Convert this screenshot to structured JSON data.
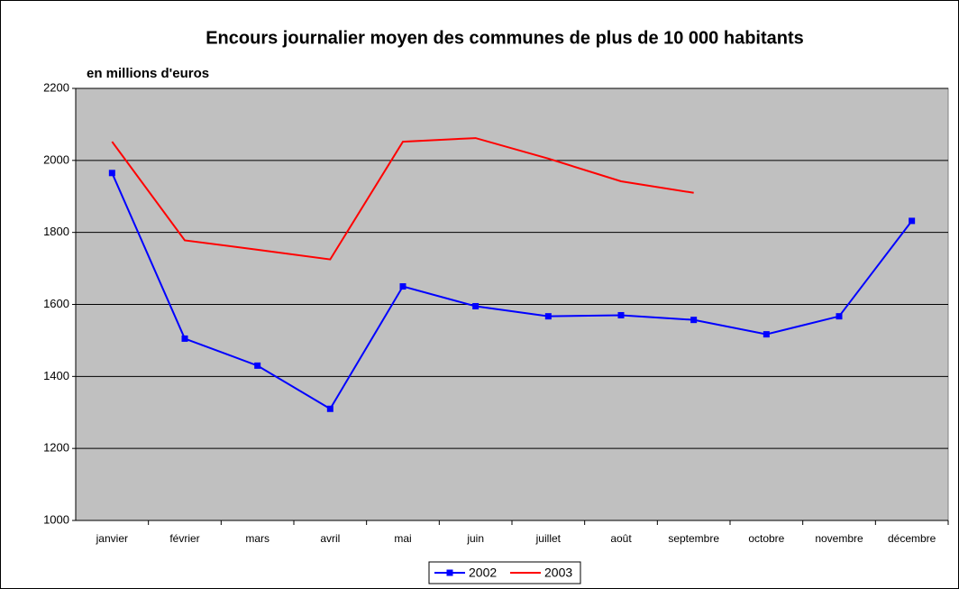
{
  "chart_data": {
    "type": "line",
    "title": "Encours journalier moyen des communes de plus de 10 000 habitants",
    "subtitle": "en millions d'euros",
    "categories": [
      "janvier",
      "février",
      "mars",
      "avril",
      "mai",
      "juin",
      "juillet",
      "août",
      "septembre",
      "octobre",
      "novembre",
      "décembre"
    ],
    "series": [
      {
        "name": "2002",
        "color": "#0000ff",
        "marker": "square",
        "values": [
          1965,
          1505,
          1430,
          1310,
          1650,
          1595,
          1567,
          1570,
          1557,
          1517,
          1567,
          1832
        ]
      },
      {
        "name": "2003",
        "color": "#ff0000",
        "values": [
          2052,
          1778,
          1752,
          1725,
          2052,
          2062,
          2005,
          1942,
          1910,
          null,
          null,
          null
        ]
      }
    ],
    "ylim": [
      1000,
      2200
    ],
    "yticks": [
      1000,
      1200,
      1400,
      1600,
      1800,
      2000,
      2200
    ],
    "grid": true,
    "legend": "bottom"
  }
}
